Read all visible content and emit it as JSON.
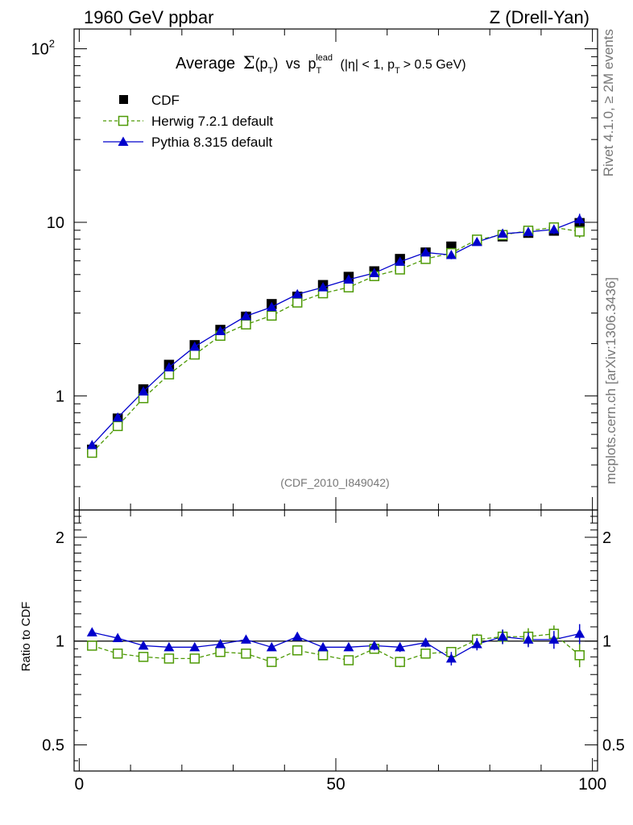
{
  "header": {
    "left_text": "1960 GeV ppbar",
    "right_text": "Z (Drell-Yan)"
  },
  "side_text": {
    "rivet": "Rivet 4.1.0, ≥ 2M events",
    "mcplots": "mcplots.cern.ch [arXiv:1306.3436]"
  },
  "chart_data": {
    "type": "scatter",
    "title": "Average Σ(pₜ) vs pₜˡᵉᵃᵈ (|η| < 1, pₜ > 0.5 GeV)",
    "title_parts": {
      "prefix": "Average",
      "sigma": "Σ",
      "pt_open": "(p",
      "T": "T",
      "pt_close": ")",
      "vs": "vs",
      "p": "p",
      "lead": "lead",
      "cuts": "(|η| < 1, p",
      "cuts_tail": "> 0.5 GeV)"
    },
    "analysis_id": "(CDF_2010_I849042)",
    "xlim": [
      -1,
      101
    ],
    "xticks": [
      0,
      50,
      100
    ],
    "xtick_labels": [
      "0",
      "50",
      "100"
    ],
    "main": {
      "yscale": "log",
      "ylim": [
        0.22,
        130
      ],
      "ytick_labels": [
        {
          "value": 1,
          "base": "1",
          "exp": ""
        },
        {
          "value": 10,
          "base": "10",
          "exp": ""
        },
        {
          "value": 100,
          "base": "10",
          "exp": "2"
        }
      ]
    },
    "ratio": {
      "yscale": "log",
      "ylim": [
        0.42,
        2.4
      ],
      "ylabel": "Ratio to CDF",
      "ytick_labels": [
        {
          "value": 0.5,
          "label": "0.5"
        },
        {
          "value": 1,
          "label": "1"
        },
        {
          "value": 2,
          "label": "2"
        }
      ]
    },
    "x": [
      2.5,
      7.5,
      12.5,
      17.5,
      22.5,
      27.5,
      32.5,
      37.5,
      42.5,
      47.5,
      52.5,
      57.5,
      62.5,
      67.5,
      72.5,
      77.5,
      82.5,
      87.5,
      92.5,
      97.5
    ],
    "series": [
      {
        "name": "CDF",
        "style": "data",
        "color": "#000000",
        "values": [
          0.49,
          0.74,
          1.09,
          1.51,
          1.96,
          2.4,
          2.86,
          3.38,
          3.73,
          4.35,
          4.85,
          5.22,
          6.15,
          6.7,
          7.25,
          7.85,
          8.3,
          8.7,
          8.95,
          9.9
        ],
        "errors": [
          0.02,
          0.02,
          0.03,
          0.04,
          0.05,
          0.06,
          0.07,
          0.08,
          0.09,
          0.1,
          0.11,
          0.12,
          0.14,
          0.15,
          0.16,
          0.18,
          0.2,
          0.22,
          0.25,
          0.3
        ]
      },
      {
        "name": "Herwig 7.2.1 default",
        "style": "open-square-dashed",
        "color": "#4e9a06",
        "values": [
          0.47,
          0.67,
          0.97,
          1.33,
          1.73,
          2.22,
          2.58,
          2.9,
          3.45,
          3.9,
          4.22,
          4.9,
          5.35,
          6.15,
          6.65,
          7.95,
          8.45,
          8.95,
          9.35,
          8.85
        ],
        "errors": [
          0.01,
          0.01,
          0.02,
          0.02,
          0.03,
          0.04,
          0.05,
          0.05,
          0.06,
          0.07,
          0.08,
          0.1,
          0.12,
          0.14,
          0.2,
          0.3,
          0.4,
          0.5,
          0.5,
          0.7
        ],
        "ratio": [
          0.97,
          0.92,
          0.9,
          0.89,
          0.89,
          0.93,
          0.92,
          0.87,
          0.94,
          0.91,
          0.88,
          0.95,
          0.87,
          0.92,
          0.93,
          1.01,
          1.03,
          1.03,
          1.05,
          0.91
        ],
        "ratio_errors": [
          0.01,
          0.01,
          0.01,
          0.01,
          0.01,
          0.01,
          0.01,
          0.01,
          0.02,
          0.02,
          0.02,
          0.02,
          0.03,
          0.03,
          0.03,
          0.04,
          0.05,
          0.06,
          0.06,
          0.07
        ]
      },
      {
        "name": "Pythia 8.315 default",
        "style": "filled-triangle-solid",
        "color": "#0000cc",
        "values": [
          0.52,
          0.75,
          1.06,
          1.46,
          1.92,
          2.36,
          2.88,
          3.25,
          3.85,
          4.22,
          4.68,
          5.1,
          5.93,
          6.7,
          6.48,
          7.7,
          8.6,
          8.8,
          9.1,
          10.4
        ],
        "errors": [
          0.01,
          0.02,
          0.02,
          0.03,
          0.04,
          0.05,
          0.06,
          0.07,
          0.1,
          0.12,
          0.14,
          0.16,
          0.2,
          0.25,
          0.35,
          0.35,
          0.45,
          0.5,
          0.55,
          0.8
        ],
        "ratio": [
          1.06,
          1.02,
          0.97,
          0.96,
          0.96,
          0.98,
          1.01,
          0.96,
          1.03,
          0.96,
          0.96,
          0.97,
          0.96,
          0.99,
          0.89,
          0.98,
          1.03,
          1.01,
          1.01,
          1.05
        ],
        "ratio_errors": [
          0.01,
          0.01,
          0.01,
          0.01,
          0.01,
          0.01,
          0.01,
          0.01,
          0.02,
          0.02,
          0.02,
          0.03,
          0.03,
          0.03,
          0.04,
          0.04,
          0.05,
          0.05,
          0.06,
          0.07
        ]
      }
    ]
  }
}
